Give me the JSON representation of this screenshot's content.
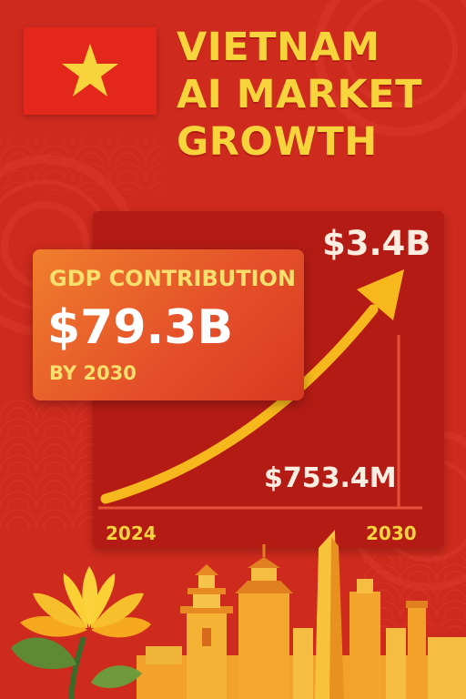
{
  "header": {
    "title": "VIETNAM\nAI MARKET\nGROWTH",
    "flag": {
      "icon": "vietnam-flag-icon",
      "field_color": "#e4271b",
      "star_color": "#f7d43c"
    }
  },
  "gdp": {
    "label": "GDP CONTRIBUTION",
    "value": "$79.3B",
    "by": "BY 2030"
  },
  "chart": {
    "end_value_label": "$3.4B",
    "start_value_label": "$753.4M",
    "start_year": "2024",
    "end_year": "2030"
  },
  "chart_data": {
    "type": "line",
    "x": [
      "2024",
      "2030"
    ],
    "series": [
      {
        "values": [
          753.4,
          3400
        ]
      }
    ],
    "data_labels": [
      "$753.4M",
      "$3.4B"
    ],
    "title": "",
    "xlabel": "",
    "ylabel": ""
  },
  "colors": {
    "background": "#cf2a1e",
    "accent_yellow": "#f7d43c",
    "arrow": "#f6b81c",
    "panel": "#b51b15"
  },
  "decor": {
    "lotus": "lotus-flower-icon",
    "skyline": "city-skyline-icon"
  }
}
